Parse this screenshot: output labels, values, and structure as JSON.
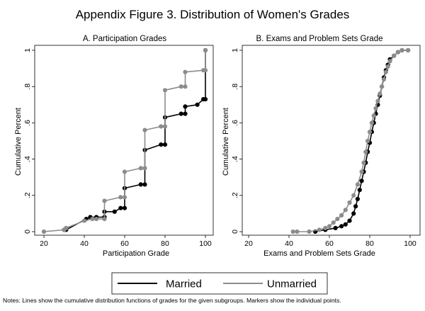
{
  "title": "Appendix Figure 3. Distribution of Women's Grades",
  "note": "Notes: Lines show the cumulative distribution functions of grades for the given subgroups. Markers show the individual points.",
  "legend": {
    "married_label": "Married",
    "unmarried_label": "Unmarried"
  },
  "colors": {
    "married": "#000000",
    "unmarried": "#8c8c8c",
    "frame": "#000000"
  },
  "chart_data": [
    {
      "type": "line",
      "panel_title": "A. Participation Grades",
      "xlabel": "Participation Grade",
      "ylabel": "Cumulative Percent",
      "xlim": [
        15,
        100
      ],
      "ylim": [
        0,
        1
      ],
      "xticks": [
        20,
        40,
        60,
        80,
        100
      ],
      "yticks": [
        0,
        0.2,
        0.4,
        0.6,
        0.8,
        1
      ],
      "ytick_labels": [
        "0",
        ".2",
        ".4",
        ".6",
        ".8",
        "1"
      ],
      "series": [
        {
          "name": "Married",
          "points": [
            [
              30,
              0.01
            ],
            [
              31,
              0.01
            ],
            [
              41,
              0.07
            ],
            [
              43,
              0.08
            ],
            [
              46,
              0.08
            ],
            [
              50,
              0.08
            ],
            [
              50,
              0.11
            ],
            [
              55,
              0.11
            ],
            [
              58,
              0.13
            ],
            [
              60,
              0.13
            ],
            [
              60,
              0.24
            ],
            [
              68,
              0.26
            ],
            [
              70,
              0.26
            ],
            [
              70,
              0.45
            ],
            [
              78,
              0.48
            ],
            [
              80,
              0.48
            ],
            [
              80,
              0.63
            ],
            [
              88,
              0.65
            ],
            [
              90,
              0.65
            ],
            [
              90,
              0.69
            ],
            [
              96,
              0.7
            ],
            [
              99,
              0.73
            ],
            [
              100,
              0.73
            ],
            [
              100,
              1.0
            ]
          ]
        },
        {
          "name": "Unmarried",
          "points": [
            [
              20,
              0.0
            ],
            [
              30,
              0.01
            ],
            [
              31,
              0.02
            ],
            [
              40,
              0.06
            ],
            [
              44,
              0.07
            ],
            [
              46,
              0.07
            ],
            [
              50,
              0.07
            ],
            [
              50,
              0.17
            ],
            [
              58,
              0.19
            ],
            [
              60,
              0.19
            ],
            [
              60,
              0.33
            ],
            [
              68,
              0.35
            ],
            [
              70,
              0.35
            ],
            [
              70,
              0.56
            ],
            [
              78,
              0.58
            ],
            [
              80,
              0.58
            ],
            [
              80,
              0.78
            ],
            [
              88,
              0.8
            ],
            [
              90,
              0.8
            ],
            [
              90,
              0.88
            ],
            [
              99,
              0.89
            ],
            [
              100,
              0.89
            ],
            [
              100,
              1.0
            ]
          ]
        }
      ]
    },
    {
      "type": "line",
      "panel_title": "B. Exams and Problem Sets Grade",
      "xlabel": "Exams and Problem Sets Grade",
      "ylabel": "Cumulative Percent",
      "xlim": [
        15,
        100
      ],
      "ylim": [
        0,
        1
      ],
      "xticks": [
        20,
        40,
        60,
        80,
        100
      ],
      "yticks": [
        0,
        0.2,
        0.4,
        0.6,
        0.8,
        1
      ],
      "ytick_labels": [
        "0",
        ".2",
        ".4",
        ".6",
        ".8",
        "1"
      ],
      "series": [
        {
          "name": "Married",
          "points": [
            [
              53,
              0.0
            ],
            [
              58,
              0.01
            ],
            [
              63,
              0.02
            ],
            [
              66,
              0.03
            ],
            [
              68,
              0.04
            ],
            [
              70,
              0.06
            ],
            [
              72,
              0.1
            ],
            [
              73,
              0.14
            ],
            [
              74,
              0.18
            ],
            [
              75,
              0.23
            ],
            [
              76,
              0.28
            ],
            [
              77,
              0.33
            ],
            [
              78,
              0.38
            ],
            [
              79,
              0.44
            ],
            [
              80,
              0.49
            ],
            [
              81,
              0.55
            ],
            [
              82,
              0.6
            ],
            [
              83,
              0.65
            ],
            [
              84,
              0.7
            ],
            [
              85,
              0.75
            ],
            [
              86,
              0.8
            ],
            [
              87,
              0.85
            ],
            [
              88,
              0.89
            ],
            [
              89,
              0.92
            ],
            [
              90,
              0.95
            ],
            [
              92,
              0.97
            ],
            [
              94,
              0.99
            ],
            [
              96,
              1.0
            ],
            [
              99,
              1.0
            ]
          ]
        },
        {
          "name": "Unmarried",
          "points": [
            [
              42,
              0.0
            ],
            [
              44,
              0.0
            ],
            [
              50,
              0.0
            ],
            [
              55,
              0.01
            ],
            [
              58,
              0.02
            ],
            [
              60,
              0.03
            ],
            [
              62,
              0.05
            ],
            [
              64,
              0.07
            ],
            [
              66,
              0.09
            ],
            [
              68,
              0.12
            ],
            [
              70,
              0.16
            ],
            [
              72,
              0.2
            ],
            [
              74,
              0.26
            ],
            [
              76,
              0.33
            ],
            [
              77,
              0.38
            ],
            [
              78,
              0.44
            ],
            [
              79,
              0.5
            ],
            [
              80,
              0.55
            ],
            [
              81,
              0.6
            ],
            [
              82,
              0.64
            ],
            [
              83,
              0.68
            ],
            [
              84,
              0.72
            ],
            [
              85,
              0.76
            ],
            [
              86,
              0.8
            ],
            [
              87,
              0.84
            ],
            [
              88,
              0.88
            ],
            [
              89,
              0.91
            ],
            [
              90,
              0.94
            ],
            [
              92,
              0.97
            ],
            [
              94,
              0.99
            ],
            [
              96,
              1.0
            ],
            [
              99,
              1.0
            ]
          ]
        }
      ]
    }
  ]
}
